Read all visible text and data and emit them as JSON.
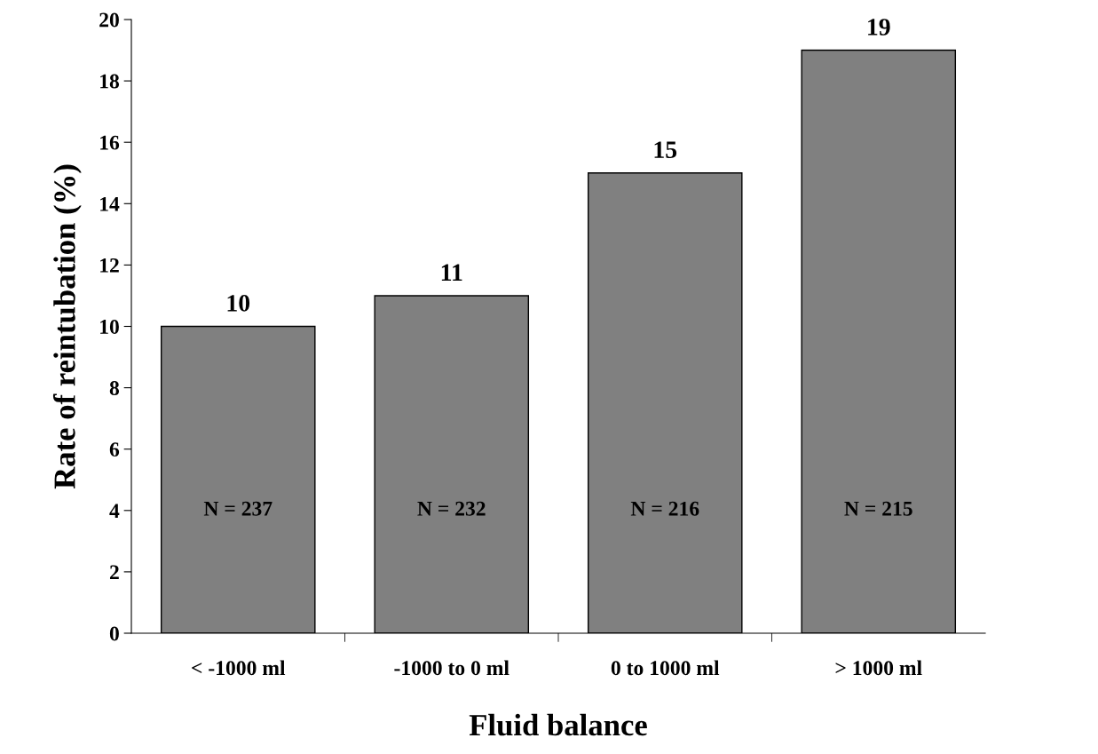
{
  "chart_data": {
    "type": "bar",
    "xlabel": "Fluid balance",
    "ylabel": "Rate of reintubation (%)",
    "categories": [
      "< -1000 ml",
      "-1000 to 0 ml",
      "0 to 1000 ml",
      "> 1000 ml"
    ],
    "values": [
      10,
      11,
      15,
      19
    ],
    "color": "#808080",
    "data_labels": true,
    "ylim": [
      0,
      20
    ],
    "yticks": [
      0,
      2,
      4,
      6,
      8,
      10,
      12,
      14,
      16,
      18,
      20
    ],
    "grid": false,
    "legend": false,
    "annotations": [
      "N = 237",
      "N = 232",
      "N = 216",
      "N = 215"
    ]
  }
}
